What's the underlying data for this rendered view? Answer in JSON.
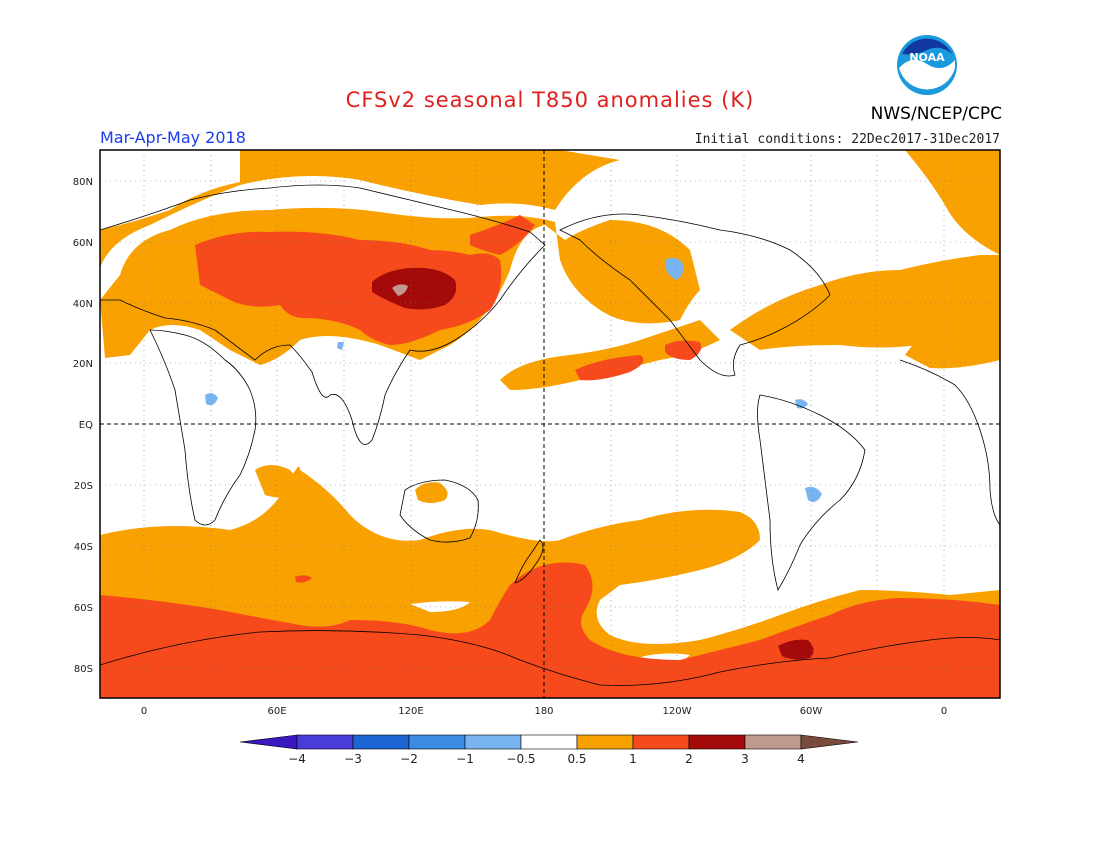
{
  "header": {
    "title": "CFSv2 seasonal T850 anomalies (K)",
    "season": "Mar-Apr-May 2018",
    "initial_conditions": "Initial conditions: 22Dec2017-31Dec2017",
    "agency": "NWS/NCEP/CPC",
    "logo_text": "NOAA"
  },
  "map": {
    "lat_labels": [
      "80N",
      "60N",
      "40N",
      "20N",
      "EQ",
      "20S",
      "40S",
      "60S",
      "80S"
    ],
    "lon_labels": [
      "0",
      "60E",
      "120E",
      "180",
      "120W",
      "60W",
      "0"
    ]
  },
  "colorbar": {
    "labels": [
      "-4",
      "-3",
      "-2",
      "-1",
      "-0.5",
      "0.5",
      "1",
      "2",
      "3",
      "4"
    ],
    "colors": [
      "#3a18c0",
      "#4a3cd6",
      "#1c64d2",
      "#3c8ce6",
      "#78b4f0",
      "#ffffff",
      "#f9a100",
      "#f64a1c",
      "#a40a0a",
      "#c09a8c",
      "#7a4a3c"
    ]
  }
}
